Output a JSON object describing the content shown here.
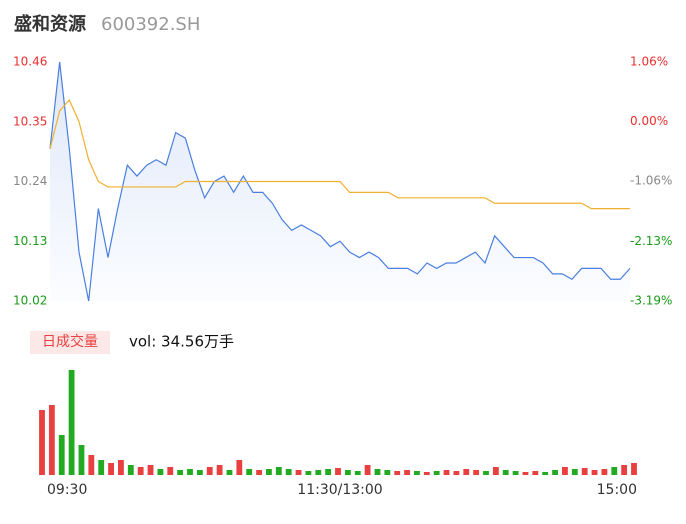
{
  "chart_data": {
    "type": "line",
    "title": "盛和资源",
    "subtitle": "600392.SH",
    "x": [
      0,
      4,
      8,
      12,
      16,
      20,
      24,
      28,
      32,
      36,
      40,
      44,
      48,
      52,
      56,
      60,
      64,
      68,
      72,
      76,
      80,
      84,
      88,
      92,
      96,
      100,
      104,
      108,
      112,
      116,
      120,
      124,
      128,
      132,
      136,
      140,
      144,
      148,
      152,
      156,
      160,
      164,
      168,
      172,
      176,
      180,
      184,
      188,
      192,
      196,
      200,
      204,
      208,
      212,
      216,
      220,
      224,
      228,
      232,
      236,
      240
    ],
    "xlim": [
      0,
      240
    ],
    "xticks": [
      {
        "value": 0,
        "label": "09:30"
      },
      {
        "value": 120,
        "label": "11:30/13:00"
      },
      {
        "value": 240,
        "label": "15:00"
      }
    ],
    "ylim": [
      10.02,
      10.46
    ],
    "yticks": [
      10.46,
      10.35,
      10.24,
      10.13,
      10.02
    ],
    "y2lim": [
      -3.19,
      1.06
    ],
    "y2ticks": [
      {
        "value": 1.06,
        "label": "1.06%"
      },
      {
        "value": 0,
        "label": "0.00%"
      },
      {
        "value": -1.06,
        "label": "-1.06%"
      },
      {
        "value": -2.13,
        "label": "-2.13%"
      },
      {
        "value": -3.19,
        "label": "-3.19%"
      }
    ],
    "series": [
      {
        "color": "#4a7fe0",
        "values": [
          10.3,
          10.46,
          10.3,
          10.11,
          10.02,
          10.19,
          10.1,
          10.19,
          10.27,
          10.25,
          10.27,
          10.28,
          10.27,
          10.33,
          10.32,
          10.26,
          10.21,
          10.24,
          10.25,
          10.22,
          10.25,
          10.22,
          10.22,
          10.2,
          10.17,
          10.15,
          10.16,
          10.15,
          10.14,
          10.12,
          10.13,
          10.11,
          10.1,
          10.11,
          10.1,
          10.08,
          10.08,
          10.08,
          10.07,
          10.09,
          10.08,
          10.09,
          10.09,
          10.1,
          10.11,
          10.09,
          10.14,
          10.12,
          10.1,
          10.1,
          10.1,
          10.09,
          10.07,
          10.07,
          10.06,
          10.08,
          10.08,
          10.08,
          10.06,
          10.06,
          10.08
        ]
      },
      {
        "color": "#f0b030",
        "values": [
          10.3,
          10.37,
          10.39,
          10.35,
          10.28,
          10.24,
          10.23,
          10.23,
          10.23,
          10.23,
          10.23,
          10.23,
          10.23,
          10.23,
          10.24,
          10.24,
          10.24,
          10.24,
          10.24,
          10.24,
          10.24,
          10.24,
          10.24,
          10.24,
          10.24,
          10.24,
          10.24,
          10.24,
          10.24,
          10.24,
          10.24,
          10.22,
          10.22,
          10.22,
          10.22,
          10.22,
          10.21,
          10.21,
          10.21,
          10.21,
          10.21,
          10.21,
          10.21,
          10.21,
          10.21,
          10.21,
          10.2,
          10.2,
          10.2,
          10.2,
          10.2,
          10.2,
          10.2,
          10.2,
          10.2,
          10.2,
          10.19,
          10.19,
          10.19,
          10.19,
          10.19
        ]
      }
    ],
    "volume": {
      "title": "日成交量",
      "label": "vol: 34.56万手",
      "ylim": [
        0,
        110
      ],
      "up_color": "#e84040",
      "down_color": "#22aa22",
      "values": [
        65,
        70,
        40,
        105,
        30,
        20,
        15,
        12,
        15,
        10,
        8,
        10,
        6,
        8,
        5,
        6,
        5,
        8,
        10,
        5,
        15,
        6,
        5,
        6,
        8,
        6,
        5,
        4,
        5,
        6,
        7,
        5,
        4,
        10,
        6,
        5,
        4,
        5,
        4,
        3,
        4,
        5,
        4,
        6,
        5,
        4,
        8,
        5,
        4,
        3,
        4,
        3,
        5,
        8,
        6,
        7,
        5,
        6,
        8,
        10,
        12
      ]
    }
  }
}
